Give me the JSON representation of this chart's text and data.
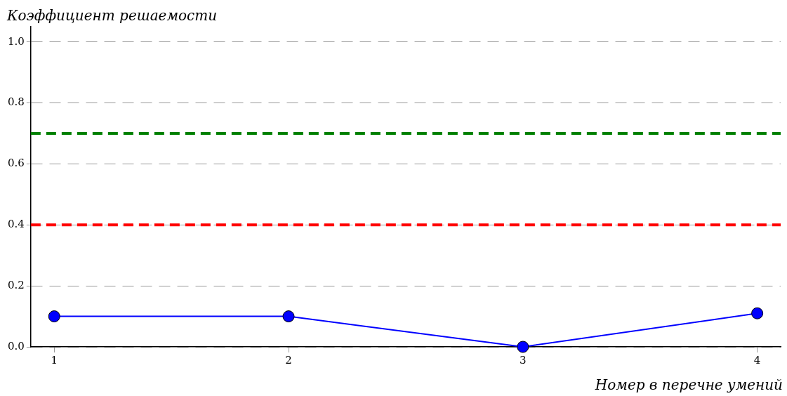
{
  "chart_data": {
    "type": "line",
    "ylabel": "Коэффициент решаемости",
    "xlabel": "Номер в перечне умений",
    "x": [
      1,
      2,
      3,
      4
    ],
    "series": [
      {
        "color": "#0000ff",
        "values": [
          0.1,
          0.1,
          0.0,
          0.11
        ]
      }
    ],
    "xlim": [
      0.9,
      4.1
    ],
    "xticks": [
      1,
      2,
      3,
      4
    ],
    "ylim": [
      0,
      1.05
    ],
    "yticks": [
      {
        "value": 0,
        "label": "0.0"
      },
      {
        "value": 0.2,
        "label": "0.2"
      },
      {
        "value": 0.4,
        "label": "0.4"
      },
      {
        "value": 0.6,
        "label": "0.6"
      },
      {
        "value": 0.8,
        "label": "0.8"
      },
      {
        "value": 1,
        "label": "1.0"
      }
    ],
    "ref_lines": [
      {
        "axis": "y",
        "value": 0.7,
        "color": "#008000",
        "line_style": "dashed"
      },
      {
        "axis": "y",
        "value": 0.4,
        "color": "#ff0000",
        "line_style": "dashed"
      }
    ],
    "grid": "y",
    "legend": false,
    "marker": "circle",
    "line_style": "solid"
  }
}
